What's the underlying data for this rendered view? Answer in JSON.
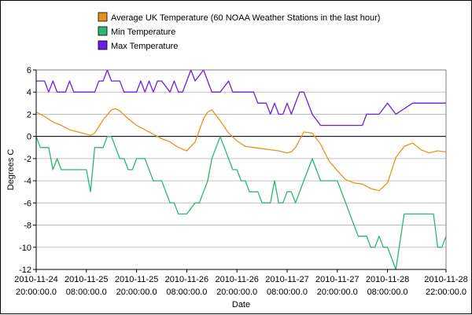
{
  "chart_data": {
    "type": "line",
    "title": "",
    "xlabel": "Date",
    "ylabel": "Degrees C",
    "ylim": [
      -12,
      6
    ],
    "xlim": [
      "2010-11-24 20:00:00.0",
      "2010-11-28 22:00:00.0"
    ],
    "grid": true,
    "legend_position": "top",
    "y_ticks": [
      "6",
      "4",
      "2",
      "0",
      "-2",
      "-4",
      "-6",
      "-8",
      "-10",
      "-12"
    ],
    "x_ticks": [
      {
        "date": "2010-11-24",
        "time": "20:00:00.0",
        "x": "2010-11-24 20:00"
      },
      {
        "date": "2010-11-25",
        "time": "08:00:00.0",
        "x": "2010-11-25 08:00"
      },
      {
        "date": "2010-11-25",
        "time": "20:00:00.0",
        "x": "2010-11-25 20:00"
      },
      {
        "date": "2010-11-26",
        "time": "08:00:00.0",
        "x": "2010-11-26 08:00"
      },
      {
        "date": "2010-11-26",
        "time": "20:00:00.0",
        "x": "2010-11-26 20:00"
      },
      {
        "date": "2010-11-27",
        "time": "08:00:00.0",
        "x": "2010-11-27 08:00"
      },
      {
        "date": "2010-11-27",
        "time": "20:00:00.0",
        "x": "2010-11-27 20:00"
      },
      {
        "date": "2010-11-28",
        "time": "08:00:00.0",
        "x": "2010-11-28 08:00"
      },
      {
        "date": "2010-11-28",
        "time": "22:00:00.0",
        "x": "2010-11-28 22:00"
      }
    ],
    "series": [
      {
        "name": "Average UK Temperature (60 NOAA Weather Stations in the last hour)",
        "color": "#e8941a",
        "x": [
          "2010-11-24 20:00",
          "2010-11-24 22:00",
          "2010-11-25 00:00",
          "2010-11-25 02:00",
          "2010-11-25 04:00",
          "2010-11-25 06:00",
          "2010-11-25 08:00",
          "2010-11-25 09:00",
          "2010-11-25 10:00",
          "2010-11-25 12:00",
          "2010-11-25 14:00",
          "2010-11-25 15:00",
          "2010-11-25 16:00",
          "2010-11-25 18:00",
          "2010-11-25 20:00",
          "2010-11-25 22:00",
          "2010-11-26 00:00",
          "2010-11-26 02:00",
          "2010-11-26 04:00",
          "2010-11-26 06:00",
          "2010-11-26 08:00",
          "2010-11-26 10:00",
          "2010-11-26 12:00",
          "2010-11-26 13:00",
          "2010-11-26 14:00",
          "2010-11-26 16:00",
          "2010-11-26 18:00",
          "2010-11-26 20:00",
          "2010-11-26 22:00",
          "2010-11-27 00:00",
          "2010-11-27 02:00",
          "2010-11-27 04:00",
          "2010-11-27 06:00",
          "2010-11-27 08:00",
          "2010-11-27 09:00",
          "2010-11-27 10:00",
          "2010-11-27 12:00",
          "2010-11-27 14:00",
          "2010-11-27 16:00",
          "2010-11-27 18:00",
          "2010-11-27 20:00",
          "2010-11-27 22:00",
          "2010-11-28 00:00",
          "2010-11-28 02:00",
          "2010-11-28 04:00",
          "2010-11-28 06:00",
          "2010-11-28 08:00",
          "2010-11-28 10:00",
          "2010-11-28 12:00",
          "2010-11-28 14:00",
          "2010-11-28 16:00",
          "2010-11-28 18:00",
          "2010-11-28 20:00",
          "2010-11-28 22:00"
        ],
        "values": [
          2.2,
          1.8,
          1.3,
          1.0,
          0.6,
          0.4,
          0.2,
          0.1,
          0.3,
          1.5,
          2.4,
          2.5,
          2.3,
          1.6,
          1.0,
          0.6,
          0.2,
          -0.2,
          -0.5,
          -1.0,
          -1.3,
          -0.5,
          1.6,
          2.2,
          2.4,
          1.4,
          0.3,
          -0.4,
          -0.9,
          -1.0,
          -1.1,
          -1.2,
          -1.3,
          -1.5,
          -1.4,
          -1.0,
          0.4,
          0.3,
          -0.7,
          -2.2,
          -3.1,
          -3.9,
          -4.2,
          -4.3,
          -4.7,
          -4.9,
          -4.2,
          -1.9,
          -0.9,
          -0.6,
          -1.2,
          -1.5,
          -1.3,
          -1.4
        ]
      },
      {
        "name": "Min Temperature",
        "color": "#2bb673",
        "x": [
          "2010-11-24 20:00",
          "2010-11-24 21:00",
          "2010-11-24 22:00",
          "2010-11-24 23:00",
          "2010-11-25 00:00",
          "2010-11-25 01:00",
          "2010-11-25 02:00",
          "2010-11-25 03:00",
          "2010-11-25 04:00",
          "2010-11-25 06:00",
          "2010-11-25 08:00",
          "2010-11-25 09:00",
          "2010-11-25 10:00",
          "2010-11-25 12:00",
          "2010-11-25 13:00",
          "2010-11-25 14:00",
          "2010-11-25 15:00",
          "2010-11-25 16:00",
          "2010-11-25 17:00",
          "2010-11-25 18:00",
          "2010-11-25 19:00",
          "2010-11-25 20:00",
          "2010-11-25 21:00",
          "2010-11-25 22:00",
          "2010-11-26 00:00",
          "2010-11-26 02:00",
          "2010-11-26 03:00",
          "2010-11-26 04:00",
          "2010-11-26 05:00",
          "2010-11-26 06:00",
          "2010-11-26 08:00",
          "2010-11-26 10:00",
          "2010-11-26 11:00",
          "2010-11-26 12:00",
          "2010-11-26 13:00",
          "2010-11-26 14:00",
          "2010-11-26 15:00",
          "2010-11-26 16:00",
          "2010-11-26 17:00",
          "2010-11-26 18:00",
          "2010-11-26 19:00",
          "2010-11-26 20:00",
          "2010-11-26 21:00",
          "2010-11-26 22:00",
          "2010-11-26 23:00",
          "2010-11-27 00:00",
          "2010-11-27 01:00",
          "2010-11-27 02:00",
          "2010-11-27 03:00",
          "2010-11-27 04:00",
          "2010-11-27 05:00",
          "2010-11-27 06:00",
          "2010-11-27 07:00",
          "2010-11-27 08:00",
          "2010-11-27 09:00",
          "2010-11-27 10:00",
          "2010-11-27 11:00",
          "2010-11-27 12:00",
          "2010-11-27 13:00",
          "2010-11-27 14:00",
          "2010-11-27 15:00",
          "2010-11-27 16:00",
          "2010-11-27 18:00",
          "2010-11-27 20:00",
          "2010-11-27 22:00",
          "2010-11-28 00:00",
          "2010-11-28 01:00",
          "2010-11-28 02:00",
          "2010-11-28 03:00",
          "2010-11-28 04:00",
          "2010-11-28 05:00",
          "2010-11-28 06:00",
          "2010-11-28 07:00",
          "2010-11-28 08:00",
          "2010-11-28 10:00",
          "2010-11-28 12:00",
          "2010-11-28 14:00",
          "2010-11-28 16:00",
          "2010-11-28 18:00",
          "2010-11-28 19:00",
          "2010-11-28 20:00",
          "2010-11-28 21:00",
          "2010-11-28 22:00"
        ],
        "values": [
          0,
          -1,
          -1,
          -1,
          -3,
          -2,
          -3,
          -3,
          -3,
          -3,
          -3,
          -5,
          -1,
          -1,
          0,
          0,
          -1,
          -2,
          -2,
          -3,
          -3,
          -2,
          -2,
          -2,
          -4,
          -4,
          -5,
          -6,
          -6,
          -7,
          -7,
          -6,
          -6,
          -5,
          -4,
          -2,
          -1,
          0,
          -1,
          -2,
          -3,
          -3,
          -4,
          -4,
          -5,
          -5,
          -5,
          -6,
          -6,
          -6,
          -4,
          -6,
          -6,
          -5,
          -5,
          -6,
          -5,
          -4,
          -3,
          -2,
          -3,
          -4,
          -4,
          -4,
          -6,
          -8,
          -9,
          -9,
          -9,
          -10,
          -10,
          -9,
          -10,
          -10,
          -12,
          -7,
          -7,
          -7,
          -7,
          -7,
          -10,
          -10,
          -9
        ]
      },
      {
        "name": "Max Temperature",
        "color": "#6a1ee8",
        "x": [
          "2010-11-24 20:00",
          "2010-11-24 22:00",
          "2010-11-24 23:00",
          "2010-11-25 00:00",
          "2010-11-25 01:00",
          "2010-11-25 02:00",
          "2010-11-25 03:00",
          "2010-11-25 04:00",
          "2010-11-25 05:00",
          "2010-11-25 06:00",
          "2010-11-25 08:00",
          "2010-11-25 10:00",
          "2010-11-25 11:00",
          "2010-11-25 12:00",
          "2010-11-25 13:00",
          "2010-11-25 14:00",
          "2010-11-25 16:00",
          "2010-11-25 17:00",
          "2010-11-25 18:00",
          "2010-11-25 19:00",
          "2010-11-25 20:00",
          "2010-11-25 21:00",
          "2010-11-25 22:00",
          "2010-11-25 23:00",
          "2010-11-26 00:00",
          "2010-11-26 01:00",
          "2010-11-26 02:00",
          "2010-11-26 04:00",
          "2010-11-26 05:00",
          "2010-11-26 06:00",
          "2010-11-26 07:00",
          "2010-11-26 08:00",
          "2010-11-26 09:00",
          "2010-11-26 10:00",
          "2010-11-26 12:00",
          "2010-11-26 13:00",
          "2010-11-26 14:00",
          "2010-11-26 15:00",
          "2010-11-26 16:00",
          "2010-11-26 18:00",
          "2010-11-26 19:00",
          "2010-11-26 20:00",
          "2010-11-26 22:00",
          "2010-11-26 23:00",
          "2010-11-27 00:00",
          "2010-11-27 01:00",
          "2010-11-27 02:00",
          "2010-11-27 03:00",
          "2010-11-27 04:00",
          "2010-11-27 05:00",
          "2010-11-27 06:00",
          "2010-11-27 07:00",
          "2010-11-27 08:00",
          "2010-11-27 09:00",
          "2010-11-27 10:00",
          "2010-11-27 11:00",
          "2010-11-27 12:00",
          "2010-11-27 14:00",
          "2010-11-27 16:00",
          "2010-11-27 18:00",
          "2010-11-27 20:00",
          "2010-11-27 22:00",
          "2010-11-28 00:00",
          "2010-11-28 02:00",
          "2010-11-28 03:00",
          "2010-11-28 04:00",
          "2010-11-28 05:00",
          "2010-11-28 06:00",
          "2010-11-28 08:00",
          "2010-11-28 10:00",
          "2010-11-28 14:00",
          "2010-11-28 18:00",
          "2010-11-28 22:00"
        ],
        "values": [
          5,
          5,
          4,
          5,
          4,
          4,
          4,
          5,
          4,
          4,
          4,
          4,
          5,
          5,
          6,
          5,
          5,
          4,
          4,
          4,
          4,
          5,
          4,
          5,
          4,
          5,
          5,
          4,
          5,
          4,
          4,
          5,
          6,
          5,
          6,
          5,
          4,
          4,
          4,
          5,
          4,
          4,
          4,
          4,
          4,
          3,
          3,
          3,
          2,
          3,
          2,
          2,
          3,
          2,
          3,
          4,
          4,
          2,
          1,
          1,
          1,
          1,
          1,
          1,
          2,
          2,
          2,
          2,
          3,
          2,
          3,
          3,
          3
        ]
      }
    ]
  }
}
